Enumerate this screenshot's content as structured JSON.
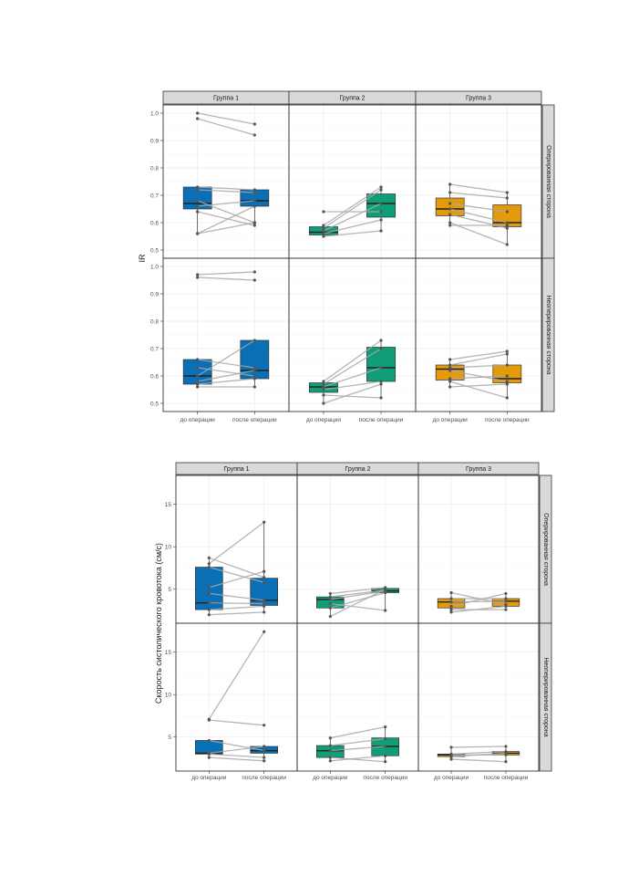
{
  "colors": {
    "group1": "#0a6fb5",
    "group2": "#109e79",
    "group3": "#e39b0c",
    "strip_bg": "#d9d9d9",
    "panel_border": "#333333",
    "grid": "#ebebeb",
    "line": "#a8a8a8",
    "point": "#555555",
    "axis_text": "#4d4d4d"
  },
  "chart_data": [
    {
      "type": "box",
      "ylabel": "IR",
      "ylim": [
        0.47,
        1.03
      ],
      "yticks": [
        0.5,
        0.6,
        0.7,
        0.8,
        0.9,
        1.0
      ],
      "ytick_labels": [
        "0.5",
        "0.6",
        "0.7",
        "0.8",
        "0.9",
        "1.0"
      ],
      "x_labels": [
        "до операции",
        "после операции"
      ],
      "columns": [
        "Группа 1",
        "Группа 2",
        "Группа 3"
      ],
      "rows": [
        "Оперированная сторона",
        "Неоперированная сторона"
      ],
      "grid": true,
      "panels": [
        [
          {
            "boxes": [
              {
                "q1": 0.65,
                "median": 0.67,
                "q3": 0.73,
                "lo": 0.56,
                "hi": 0.73
              },
              {
                "q1": 0.66,
                "median": 0.68,
                "q3": 0.72,
                "lo": 0.59,
                "hi": 0.72
              }
            ],
            "pairs": [
              [
                1.0,
                0.96
              ],
              [
                0.98,
                0.92
              ],
              [
                0.73,
                0.72
              ],
              [
                0.72,
                0.71
              ],
              [
                0.68,
                0.6
              ],
              [
                0.66,
                0.68
              ],
              [
                0.64,
                0.59
              ],
              [
                0.56,
                0.6
              ],
              [
                0.56,
                0.66
              ]
            ]
          },
          {
            "boxes": [
              {
                "q1": 0.555,
                "median": 0.565,
                "q3": 0.585,
                "lo": 0.55,
                "hi": 0.59
              },
              {
                "q1": 0.62,
                "median": 0.67,
                "q3": 0.705,
                "lo": 0.57,
                "hi": 0.73
              }
            ],
            "pairs": [
              [
                0.64,
                0.64
              ],
              [
                0.59,
                0.73
              ],
              [
                0.58,
                0.72
              ],
              [
                0.57,
                0.67
              ],
              [
                0.56,
                0.61
              ],
              [
                0.55,
                0.57
              ]
            ]
          },
          {
            "boxes": [
              {
                "q1": 0.625,
                "median": 0.65,
                "q3": 0.69,
                "lo": 0.59,
                "hi": 0.74
              },
              {
                "q1": 0.585,
                "median": 0.6,
                "q3": 0.665,
                "lo": 0.52,
                "hi": 0.71
              }
            ],
            "pairs": [
              [
                0.74,
                0.71
              ],
              [
                0.71,
                0.69
              ],
              [
                0.67,
                0.64
              ],
              [
                0.65,
                0.6
              ],
              [
                0.63,
                0.58
              ],
              [
                0.6,
                0.52
              ],
              [
                0.59,
                0.59
              ]
            ]
          }
        ],
        [
          {
            "boxes": [
              {
                "q1": 0.57,
                "median": 0.6,
                "q3": 0.66,
                "lo": 0.56,
                "hi": 0.66
              },
              {
                "q1": 0.59,
                "median": 0.62,
                "q3": 0.73,
                "lo": 0.56,
                "hi": 0.73
              }
            ],
            "pairs": [
              [
                0.97,
                0.98
              ],
              [
                0.96,
                0.95
              ],
              [
                0.66,
                0.63
              ],
              [
                0.63,
                0.6
              ],
              [
                0.6,
                0.73
              ],
              [
                0.58,
                0.62
              ],
              [
                0.57,
                0.59
              ],
              [
                0.56,
                0.56
              ]
            ]
          },
          {
            "boxes": [
              {
                "q1": 0.54,
                "median": 0.56,
                "q3": 0.575,
                "lo": 0.5,
                "hi": 0.58
              },
              {
                "q1": 0.58,
                "median": 0.63,
                "q3": 0.705,
                "lo": 0.52,
                "hi": 0.73
              }
            ],
            "pairs": [
              [
                0.58,
                0.73
              ],
              [
                0.57,
                0.7
              ],
              [
                0.56,
                0.63
              ],
              [
                0.55,
                0.58
              ],
              [
                0.53,
                0.52
              ],
              [
                0.5,
                0.57
              ]
            ]
          },
          {
            "boxes": [
              {
                "q1": 0.585,
                "median": 0.625,
                "q3": 0.64,
                "lo": 0.56,
                "hi": 0.66
              },
              {
                "q1": 0.575,
                "median": 0.59,
                "q3": 0.64,
                "lo": 0.52,
                "hi": 0.69
              }
            ],
            "pairs": [
              [
                0.66,
                0.69
              ],
              [
                0.64,
                0.68
              ],
              [
                0.63,
                0.64
              ],
              [
                0.62,
                0.58
              ],
              [
                0.59,
                0.6
              ],
              [
                0.58,
                0.52
              ],
              [
                0.56,
                0.57
              ]
            ]
          }
        ]
      ]
    },
    {
      "type": "box",
      "ylabel": "Скорость систолического кровотока (см/с)",
      "ylim": [
        1.0,
        18.4
      ],
      "yticks": [
        5,
        10,
        15
      ],
      "ytick_labels": [
        "5",
        "10",
        "15"
      ],
      "x_labels": [
        "до операции",
        "после операции"
      ],
      "columns": [
        "Группа 1",
        "Группа 2",
        "Группа 3"
      ],
      "rows": [
        "Оперированная сторона",
        "Неоперированная сторона"
      ],
      "grid": true,
      "panels": [
        [
          {
            "boxes": [
              {
                "q1": 2.6,
                "median": 3.4,
                "q3": 7.6,
                "lo": 2.0,
                "hi": 8.7
              },
              {
                "q1": 3.1,
                "median": 3.7,
                "q3": 6.3,
                "lo": 2.3,
                "hi": 12.9
              }
            ],
            "pairs": [
              [
                8.7,
                6.4
              ],
              [
                8.0,
                12.9
              ],
              [
                7.6,
                5.8
              ],
              [
                5.2,
                7.1
              ],
              [
                4.5,
                3.7
              ],
              [
                3.4,
                3.3
              ],
              [
                2.6,
                3.0
              ],
              [
                2.0,
                2.3
              ]
            ]
          },
          {
            "boxes": [
              {
                "q1": 2.8,
                "median": 3.8,
                "q3": 4.1,
                "lo": 1.8,
                "hi": 4.5
              },
              {
                "q1": 4.6,
                "median": 4.8,
                "q3": 5.1,
                "lo": 2.5,
                "hi": 5.2
              }
            ],
            "pairs": [
              [
                4.5,
                5.2
              ],
              [
                4.1,
                4.9
              ],
              [
                3.8,
                4.8
              ],
              [
                3.3,
                2.5
              ],
              [
                2.8,
                4.6
              ],
              [
                1.8,
                5.0
              ]
            ]
          },
          {
            "boxes": [
              {
                "q1": 2.8,
                "median": 3.5,
                "q3": 3.9,
                "lo": 2.3,
                "hi": 4.6
              },
              {
                "q1": 3.0,
                "median": 3.6,
                "q3": 3.9,
                "lo": 2.6,
                "hi": 4.5
              }
            ],
            "pairs": [
              [
                4.6,
                3.2
              ],
              [
                3.9,
                3.9
              ],
              [
                3.5,
                3.6
              ],
              [
                3.0,
                4.5
              ],
              [
                2.6,
                2.6
              ],
              [
                2.3,
                3.0
              ]
            ]
          }
        ],
        [
          {
            "boxes": [
              {
                "q1": 3.0,
                "median": 3.1,
                "q3": 4.6,
                "lo": 2.6,
                "hi": 4.7
              },
              {
                "q1": 3.1,
                "median": 3.4,
                "q3": 3.9,
                "lo": 2.2,
                "hi": 4.0
              }
            ],
            "pairs": [
              [
                7.1,
                17.4
              ],
              [
                7.0,
                6.4
              ],
              [
                4.6,
                3.4
              ],
              [
                3.1,
                3.9
              ],
              [
                3.0,
                2.6
              ],
              [
                2.6,
                2.2
              ]
            ]
          },
          {
            "boxes": [
              {
                "q1": 2.6,
                "median": 3.4,
                "q3": 4.0,
                "lo": 2.2,
                "hi": 4.9
              },
              {
                "q1": 2.8,
                "median": 3.9,
                "q3": 4.9,
                "lo": 2.1,
                "hi": 6.2
              }
            ],
            "pairs": [
              [
                4.9,
                6.2
              ],
              [
                4.0,
                4.8
              ],
              [
                3.4,
                3.9
              ],
              [
                2.6,
                2.1
              ],
              [
                2.2,
                2.8
              ]
            ]
          },
          {
            "boxes": [
              {
                "q1": 2.7,
                "median": 2.9,
                "q3": 3.0,
                "lo": 2.4,
                "hi": 3.8
              },
              {
                "q1": 2.9,
                "median": 3.1,
                "q3": 3.3,
                "lo": 2.1,
                "hi": 3.9
              }
            ],
            "pairs": [
              [
                3.8,
                3.9
              ],
              [
                3.0,
                3.3
              ],
              [
                2.9,
                2.9
              ],
              [
                2.7,
                3.1
              ],
              [
                2.4,
                2.1
              ]
            ]
          }
        ]
      ]
    }
  ]
}
